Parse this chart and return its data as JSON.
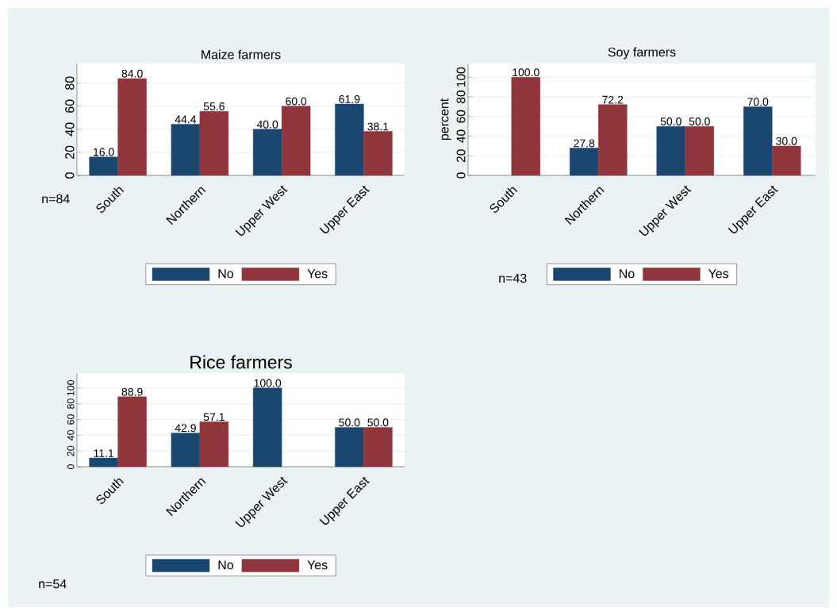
{
  "chart_data": [
    {
      "type": "bar",
      "title": "Maize farmers",
      "categories": [
        "South",
        "Northern",
        "Upper West",
        "Upper East"
      ],
      "series": [
        {
          "name": "No",
          "color": "#1a476f",
          "values": [
            16.0,
            44.4,
            40.0,
            61.9
          ],
          "value_labels": [
            "16.0",
            "44.4",
            "40.0",
            "61.9"
          ]
        },
        {
          "name": "Yes",
          "color": "#90353b",
          "values": [
            84.0,
            55.6,
            60.0,
            38.1
          ],
          "value_labels": [
            "84.0",
            "55.6",
            "60.0",
            "38.1"
          ]
        }
      ],
      "ylim": [
        0,
        97
      ],
      "yticks": [
        0,
        20,
        40,
        60,
        80
      ],
      "grid": "y",
      "legend": "bottom",
      "annotations": [
        "n=84"
      ]
    },
    {
      "type": "bar",
      "title": "Soy farmers",
      "ylabel": "percent",
      "categories": [
        "South",
        "Northern",
        "Upper West",
        "Upper East"
      ],
      "series": [
        {
          "name": "No",
          "color": "#1a476f",
          "values": [
            null,
            27.8,
            50.0,
            70.0
          ],
          "value_labels": [
            null,
            "27.8",
            "50.0",
            "70.0"
          ]
        },
        {
          "name": "Yes",
          "color": "#90353b",
          "values": [
            100.0,
            72.2,
            50.0,
            30.0
          ],
          "value_labels": [
            "100.0",
            "72.2",
            "50.0",
            "30.0"
          ]
        }
      ],
      "ylim": [
        0,
        114
      ],
      "yticks": [
        0,
        20,
        40,
        60,
        80,
        100
      ],
      "grid": "y",
      "legend": "bottom",
      "annotations": [
        "n=43"
      ]
    },
    {
      "type": "bar",
      "title": "Rice farmers",
      "categories": [
        "South",
        "Northern",
        "Upper West",
        "Upper East"
      ],
      "series": [
        {
          "name": "No",
          "color": "#1a476f",
          "values": [
            11.1,
            42.9,
            100.0,
            50.0
          ],
          "value_labels": [
            "11.1",
            "42.9",
            "100.0",
            "50.0"
          ]
        },
        {
          "name": "Yes",
          "color": "#90353b",
          "values": [
            88.9,
            57.1,
            null,
            50.0
          ],
          "value_labels": [
            "88.9",
            "57.1",
            null,
            "50.0"
          ]
        }
      ],
      "ylim": [
        0,
        119
      ],
      "yticks": [
        0,
        20,
        40,
        60,
        80,
        100
      ],
      "grid": "y",
      "legend": "bottom",
      "annotations": [
        "n=54"
      ]
    }
  ]
}
